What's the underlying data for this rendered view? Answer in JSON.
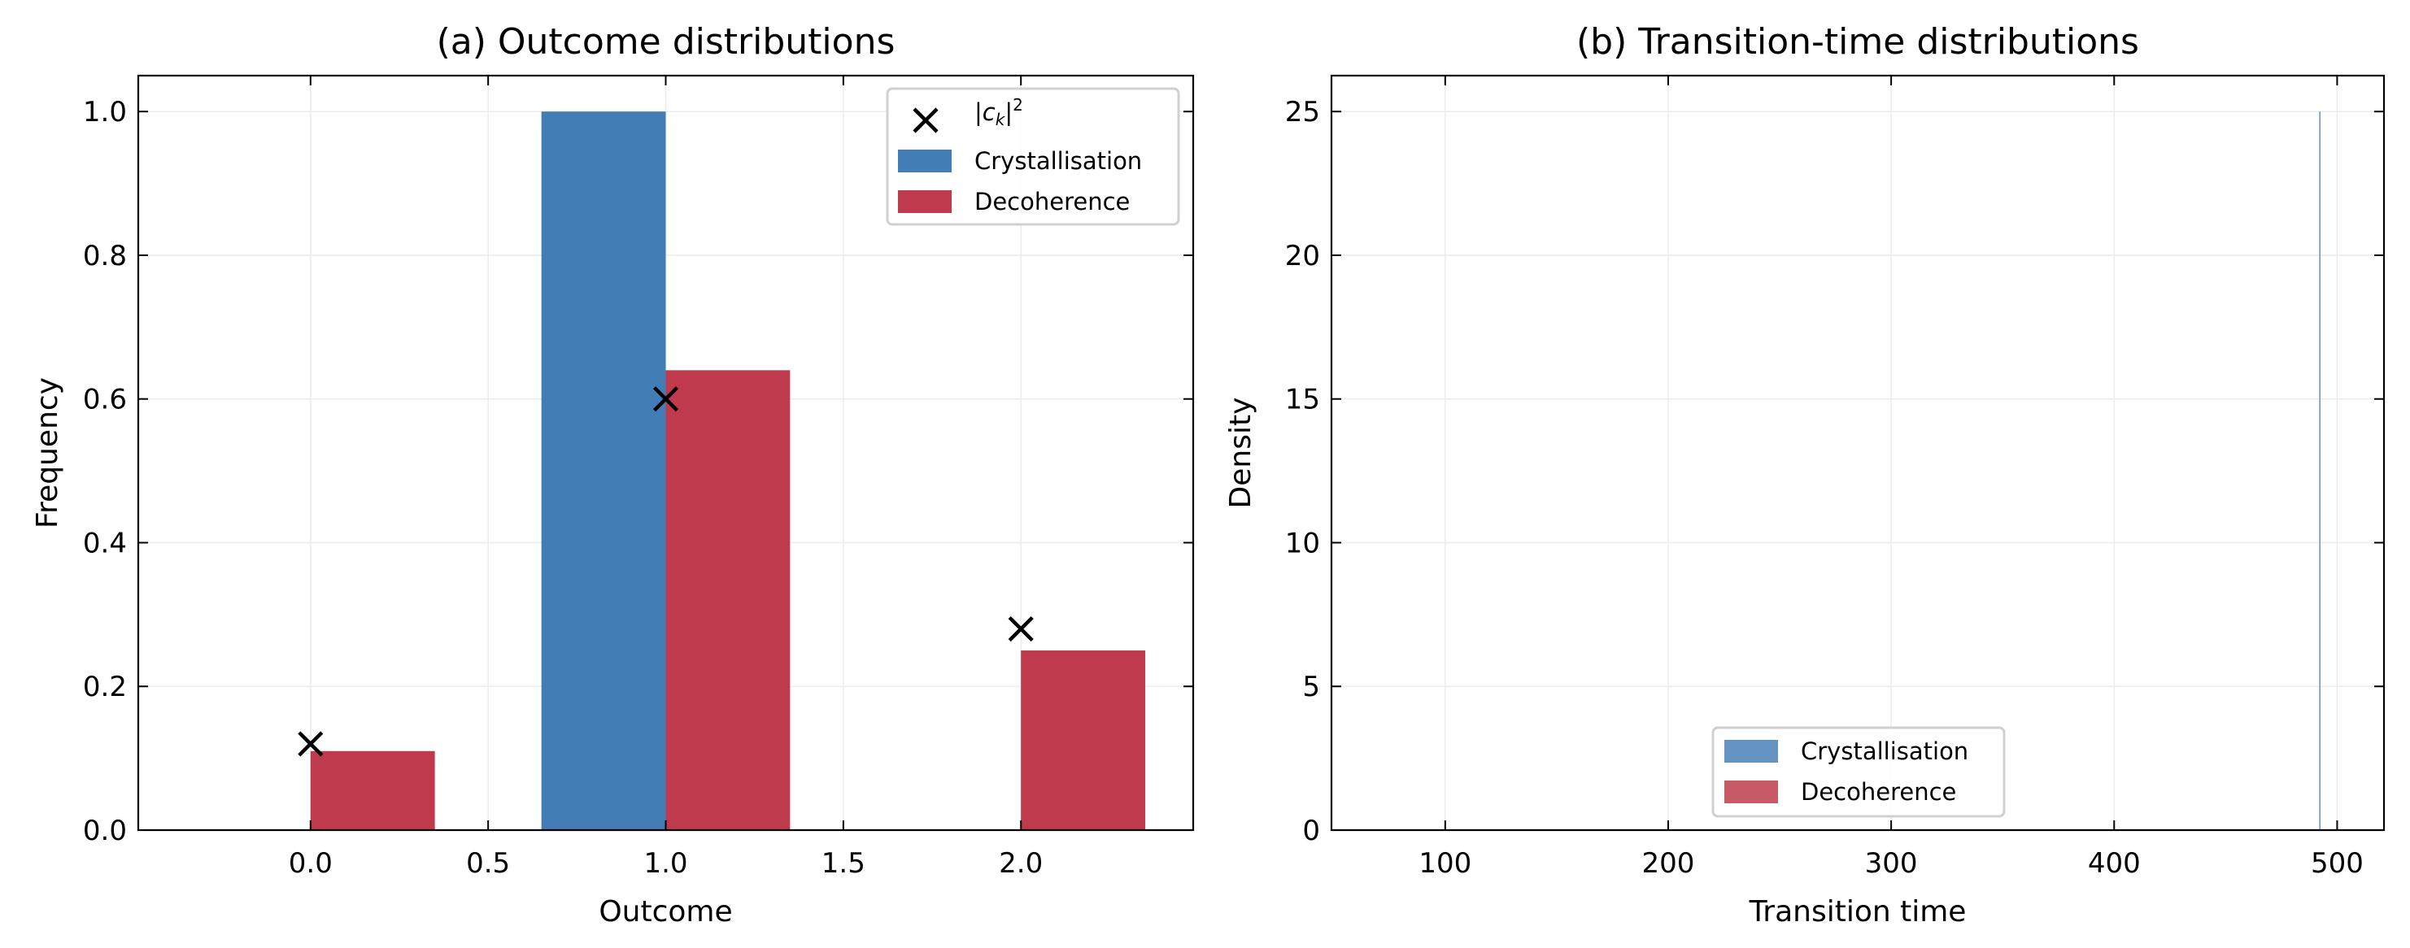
{
  "chart_data": [
    {
      "type": "bar",
      "title": "(a) Outcome distributions",
      "xlabel": "Outcome",
      "ylabel": "Frequency",
      "xlim": [
        -0.485,
        2.485
      ],
      "ylim": [
        0,
        1.05
      ],
      "xticks": [
        "0.0",
        "0.5",
        "1.0",
        "1.5",
        "2.0"
      ],
      "xtick_values": [
        0,
        0.5,
        1,
        1.5,
        2
      ],
      "yticks": [
        "0.0",
        "0.2",
        "0.4",
        "0.6",
        "0.8",
        "1.0"
      ],
      "ytick_values": [
        0,
        0.2,
        0.4,
        0.6,
        0.8,
        1.0
      ],
      "grid": true,
      "legend_position": "top-right",
      "categories": [
        0,
        1,
        2
      ],
      "bar_width": 0.35,
      "series": [
        {
          "name": "Crystallisation",
          "kind": "bar",
          "offset": -0.35,
          "values": [
            0,
            1.0,
            0
          ],
          "color": "#437DB6"
        },
        {
          "name": "Decoherence",
          "kind": "bar",
          "offset": 0,
          "values": [
            0.11,
            0.64,
            0.25
          ],
          "color": "#BE3A4C"
        },
        {
          "name": "|c_k|^2",
          "kind": "marker",
          "marker": "x",
          "values": [
            0.12,
            0.6,
            0.28
          ],
          "color": "#000000"
        }
      ]
    },
    {
      "type": "bar",
      "title": "(b) Transition-time distributions",
      "xlabel": "Transition time",
      "ylabel": "Density",
      "xlim": [
        49,
        521
      ],
      "ylim": [
        0,
        26.25
      ],
      "xticks": [
        "100",
        "200",
        "300",
        "400",
        "500"
      ],
      "xtick_values": [
        100,
        200,
        300,
        400,
        500
      ],
      "yticks": [
        "0",
        "5",
        "10",
        "15",
        "20",
        "25"
      ],
      "ytick_values": [
        0,
        5,
        10,
        15,
        20,
        25
      ],
      "grid": true,
      "legend_position": "bottom-center",
      "series": [
        {
          "name": "Crystallisation",
          "bins": [
            [
              491.98,
              492.02
            ]
          ],
          "values": [
            25
          ],
          "color": "#6593C4"
        },
        {
          "name": "Decoherence",
          "bins": [],
          "values": [],
          "color": "#C85A68"
        }
      ]
    }
  ]
}
